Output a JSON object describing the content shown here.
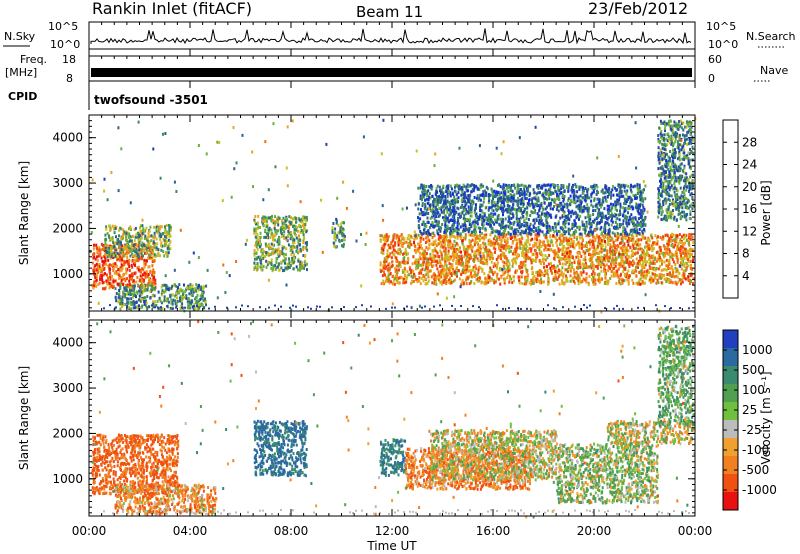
{
  "header": {
    "station": "Rankin Inlet (fitACF)",
    "beam": "Beam 11",
    "date": "23/Feb/2012"
  },
  "noise_panel": {
    "left_label": "N.Sky",
    "right_label": "N.Search",
    "left_ticks": [
      "10^5",
      "10^0"
    ],
    "right_ticks": [
      "10^5",
      "10^0"
    ]
  },
  "freq_panel": {
    "left_label_1": "Freq.",
    "left_label_2": "[MHz]",
    "right_label": "Nave",
    "left_ticks": [
      "18",
      "8"
    ],
    "right_ticks": [
      "60",
      "0"
    ]
  },
  "cpid_panel": {
    "label": "CPID",
    "value": "twofsound -3501"
  },
  "power_colorbar": {
    "label": "Power [dB]",
    "ticks": [
      "4",
      "8",
      "12",
      "16",
      "20",
      "24",
      "28"
    ],
    "colors": [
      "#1030e0",
      "#2040b0",
      "#2a6090",
      "#3a8a60",
      "#68b040",
      "#c8c020",
      "#f0a020",
      "#f07010",
      "#f04010",
      "#e81010"
    ]
  },
  "velocity_colorbar": {
    "label": "Velocity [m s⁻¹]",
    "ticks": [
      "1000",
      "500",
      "100",
      "25",
      "-25",
      "-100",
      "-500",
      "-1000"
    ],
    "colors": [
      "#2040c0",
      "#2a6aa0",
      "#3a8a70",
      "#50a050",
      "#70c040",
      "#bcbcbc",
      "#f0a030",
      "#f08020",
      "#f05010",
      "#e81010"
    ]
  },
  "chart_data": [
    {
      "type": "heatmap",
      "title": "",
      "ylabel": "Slant Range [km]",
      "xlabel": "",
      "xlim": [
        0,
        24
      ],
      "ylim": [
        180,
        4500
      ],
      "yticks": [
        1000,
        2000,
        3000,
        4000
      ],
      "colorbar_label": "Power [dB]",
      "features": [
        {
          "t0": 0.1,
          "t1": 2.6,
          "r0": 700,
          "r1": 1700,
          "power": 26
        },
        {
          "t0": 0.6,
          "t1": 3.2,
          "r0": 1400,
          "r1": 2100,
          "power": 14
        },
        {
          "t0": 1.0,
          "t1": 4.6,
          "r0": 250,
          "r1": 800,
          "power": 12
        },
        {
          "t0": 6.5,
          "t1": 8.6,
          "r0": 1100,
          "r1": 2300,
          "power": 14
        },
        {
          "t0": 9.6,
          "t1": 10.1,
          "r0": 1600,
          "r1": 2200,
          "power": 12
        },
        {
          "t0": 11.5,
          "t1": 23.9,
          "r0": 800,
          "r1": 1900,
          "power": 22
        },
        {
          "t0": 13.0,
          "t1": 22.0,
          "r0": 1900,
          "r1": 3000,
          "power": 8
        },
        {
          "t0": 22.5,
          "t1": 23.9,
          "r0": 2200,
          "r1": 4400,
          "power": 10
        }
      ]
    },
    {
      "type": "heatmap",
      "title": "",
      "ylabel": "Slant Range [km]",
      "xlabel": "Time UT",
      "xlim": [
        0,
        24
      ],
      "ylim": [
        180,
        4500
      ],
      "yticks": [
        1000,
        2000,
        3000,
        4000
      ],
      "xticks": [
        "00:00",
        "04:00",
        "08:00",
        "12:00",
        "16:00",
        "20:00",
        "00:00"
      ],
      "colorbar_label": "Velocity [m s⁻¹]",
      "features": [
        {
          "t0": 0.1,
          "t1": 3.5,
          "r0": 700,
          "r1": 2000,
          "velocity": -300
        },
        {
          "t0": 1.0,
          "t1": 5.0,
          "r0": 250,
          "r1": 900,
          "velocity": -150
        },
        {
          "t0": 6.5,
          "t1": 8.6,
          "r0": 1100,
          "r1": 2300,
          "velocity": 600
        },
        {
          "t0": 11.5,
          "t1": 12.5,
          "r0": 1100,
          "r1": 1900,
          "velocity": 500
        },
        {
          "t0": 12.5,
          "t1": 17.5,
          "r0": 800,
          "r1": 1700,
          "velocity": -200
        },
        {
          "t0": 13.5,
          "t1": 18.5,
          "r0": 1000,
          "r1": 2100,
          "velocity": 0
        },
        {
          "t0": 18.5,
          "t1": 22.5,
          "r0": 500,
          "r1": 1800,
          "velocity": 80
        },
        {
          "t0": 20.5,
          "t1": 23.9,
          "r0": 1800,
          "r1": 2300,
          "velocity": 0
        },
        {
          "t0": 22.5,
          "t1": 23.9,
          "r0": 2200,
          "r1": 4400,
          "velocity": 150
        }
      ]
    }
  ]
}
